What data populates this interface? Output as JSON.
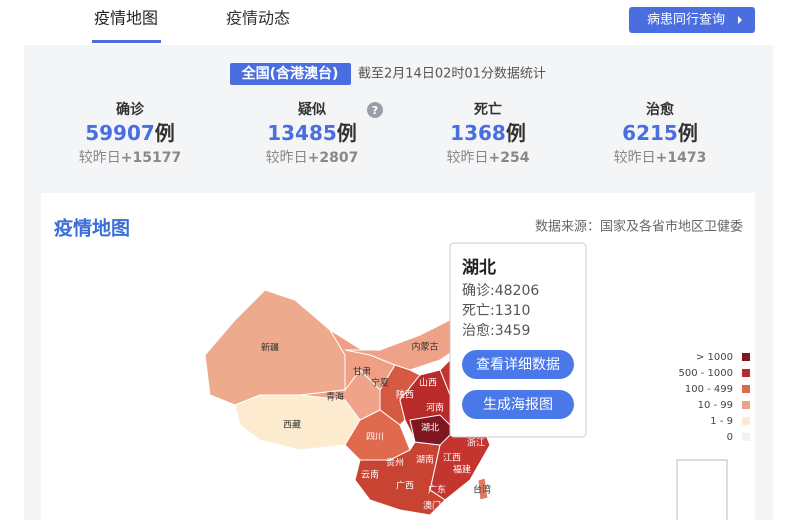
{
  "tabs": [
    "疫情地图",
    "疫情动态"
  ],
  "top_button": "病患同行查询",
  "scope": "全国(含港澳台)",
  "updated": "截至2月14日02时01分数据统计",
  "stats": [
    {
      "label": "确诊",
      "value": 59907,
      "unit": "例",
      "change_label": "较昨日",
      "change": "+15177"
    },
    {
      "label": "疑似",
      "value": 13485,
      "unit": "例",
      "change_label": "较昨日",
      "change": "+2807"
    },
    {
      "label": "死亡",
      "value": 1368,
      "unit": "例",
      "change_label": "较昨日",
      "change": "+254"
    },
    {
      "label": "治愈",
      "value": 6215,
      "unit": "例",
      "change_label": "较昨日",
      "change": "+1473"
    }
  ],
  "help_icon": "?",
  "map": {
    "title": "疫情地图",
    "source": "数据来源：国家及各省市地区卫健委",
    "province_labels": [
      "新疆",
      "西藏",
      "青海",
      "甘肃",
      "宁夏",
      "内蒙古",
      "陕西",
      "山西",
      "河南",
      "湖北",
      "四川",
      "贵州",
      "湖南",
      "江西",
      "浙江",
      "福建",
      "云南",
      "广西",
      "广东",
      "台湾",
      "澳门"
    ],
    "legend": [
      {
        "label": "> 1000",
        "color": "#7f1620"
      },
      {
        "label": "500 - 1000",
        "color": "#b92b29"
      },
      {
        "label": "100 - 499",
        "color": "#de6a4e"
      },
      {
        "label": "10 - 99",
        "color": "#eea388"
      },
      {
        "label": "1 - 9",
        "color": "#fdebcf"
      },
      {
        "label": "0",
        "color": "#f2f2f2"
      }
    ]
  },
  "tooltip": {
    "province": "湖北",
    "lines": [
      "确诊:48206",
      "死亡:1310",
      "治愈:3459"
    ],
    "buttons": [
      "查看详细数据",
      "生成海报图"
    ]
  }
}
